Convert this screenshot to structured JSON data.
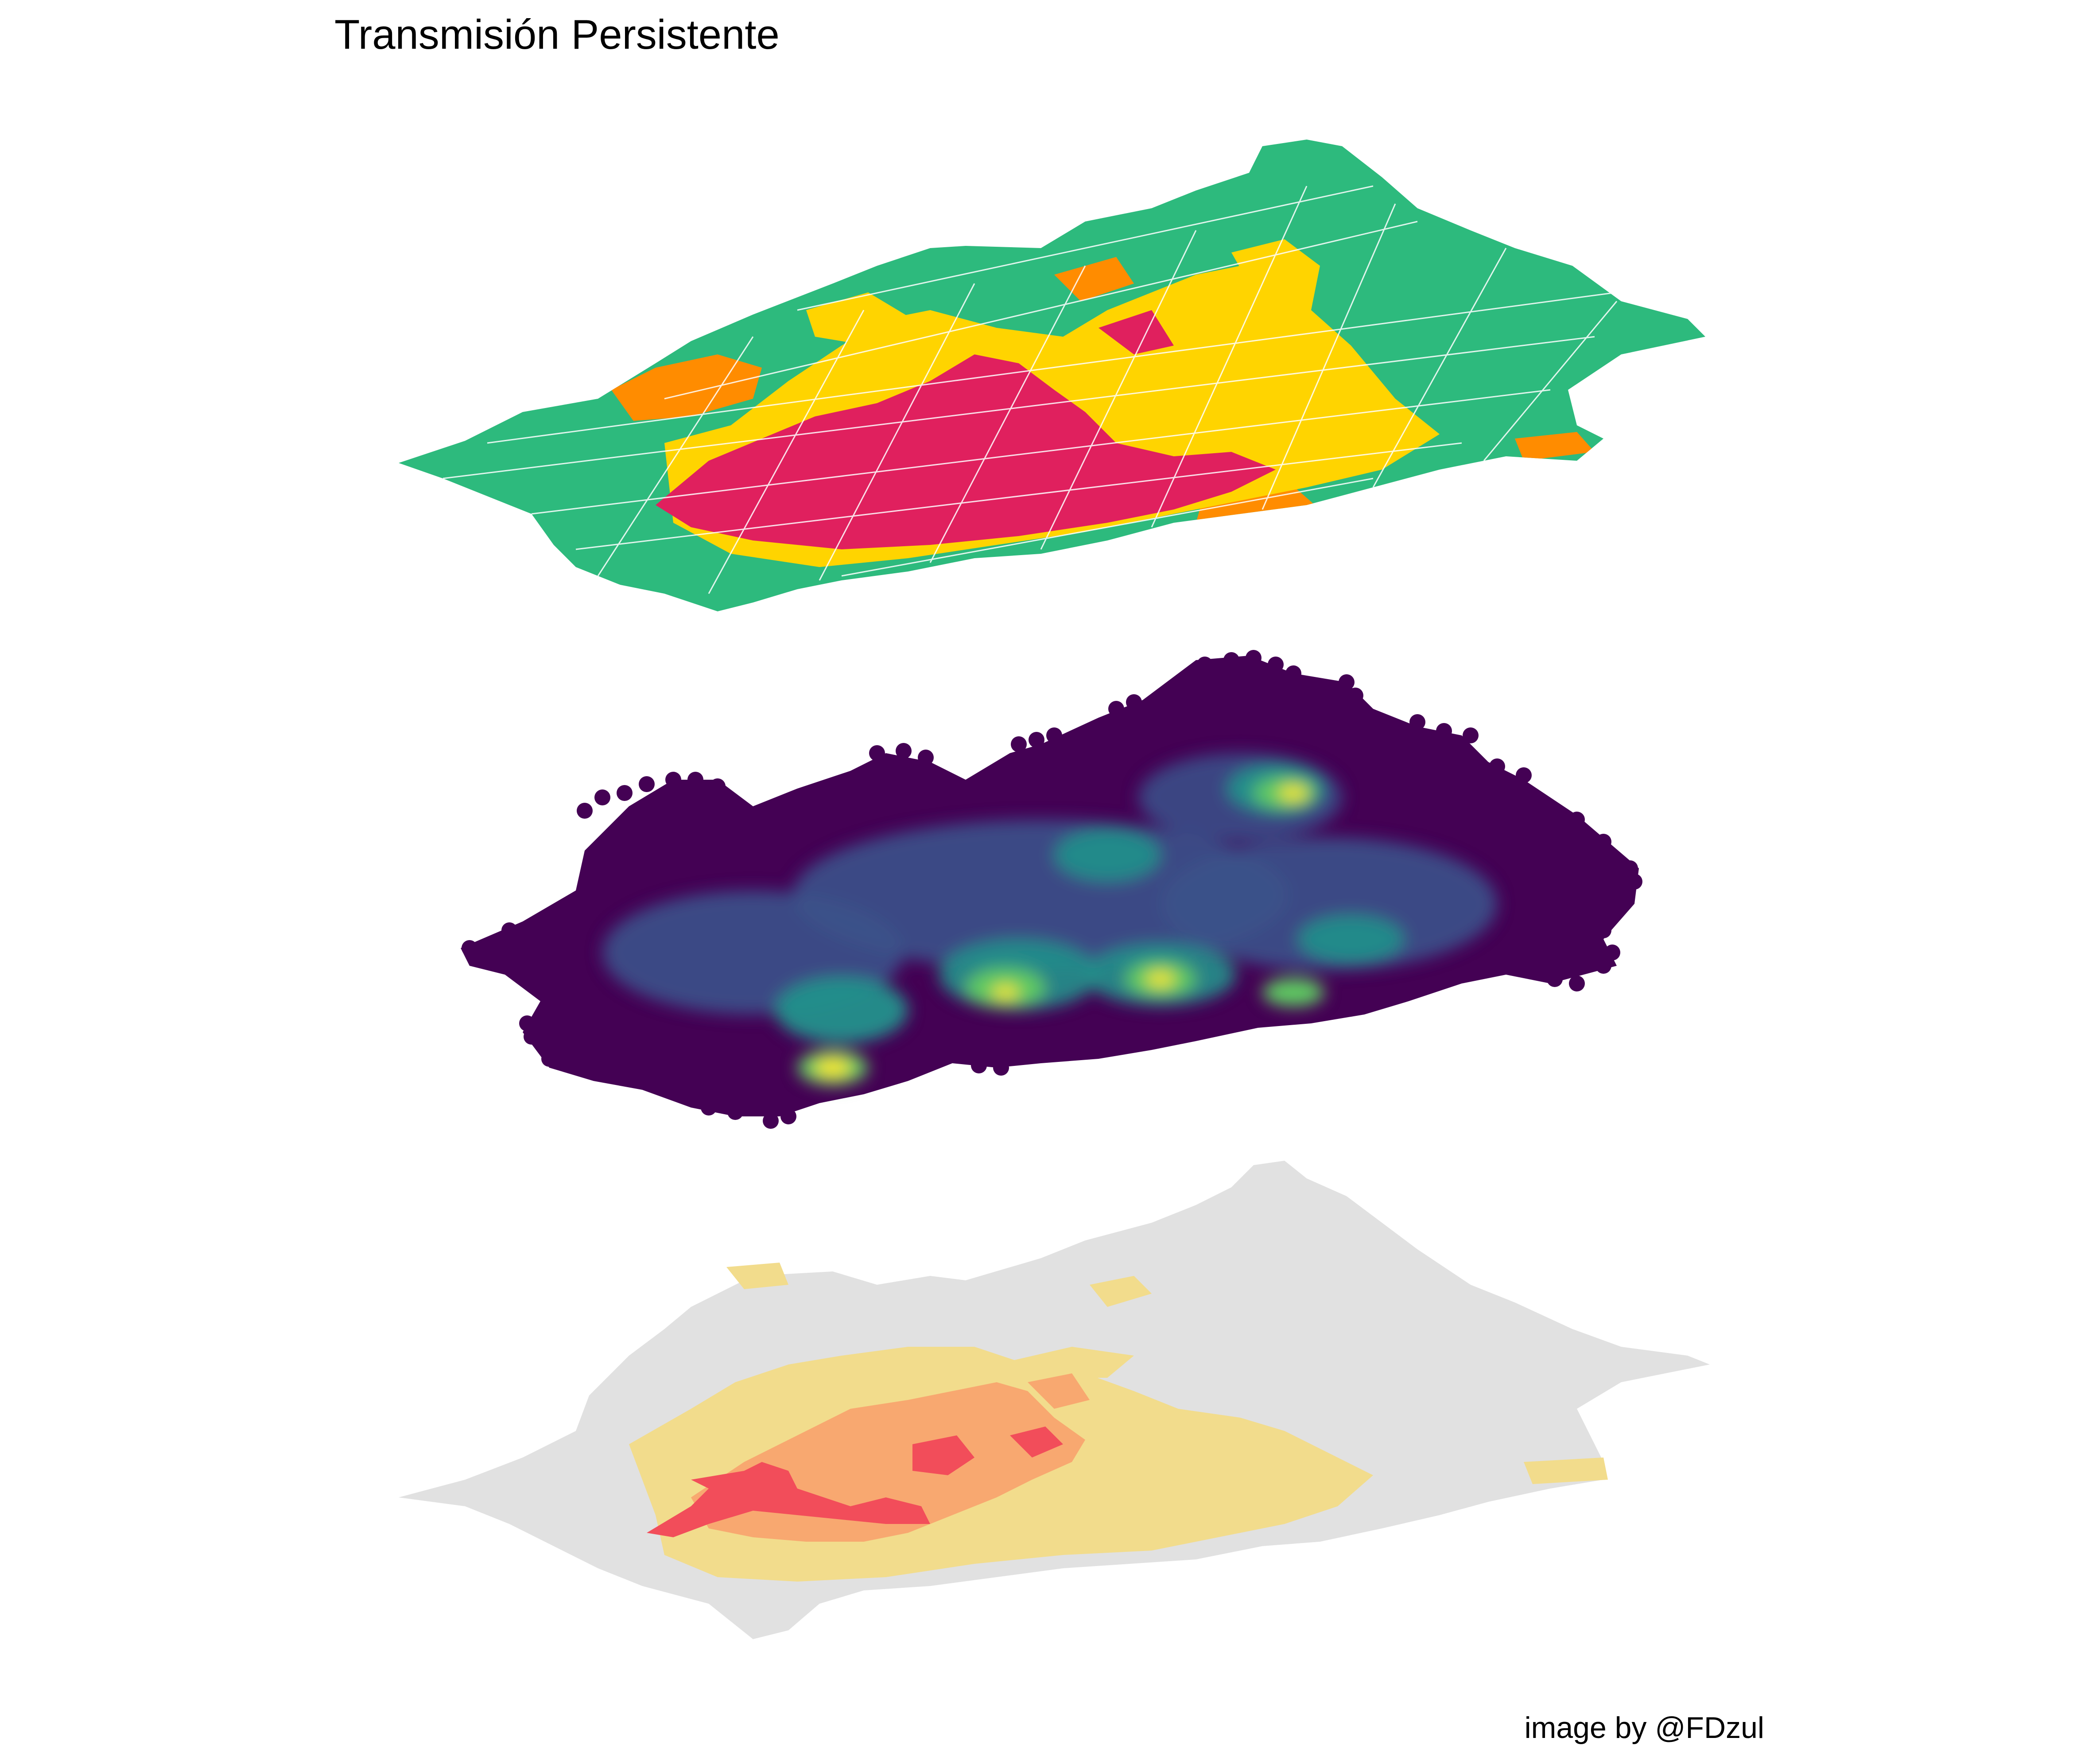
{
  "title": "Transmisión Persistente",
  "caption": "image by @FDzul",
  "colors": {
    "risk_low": "#2dba7d",
    "risk_medium": "#ffd400",
    "risk_high": "#ff8c00",
    "risk_very_high": "#e0205e",
    "density_low": "#440154",
    "density_mid_low": "#3b528b",
    "density_mid": "#21918c",
    "density_mid_high": "#5ec962",
    "density_high": "#fde725",
    "hotspot_none": "#e1e1e1",
    "hotspot_low": "#f2dc8c",
    "hotspot_medium": "#f8a870",
    "hotspot_high": "#f24d5a"
  }
}
